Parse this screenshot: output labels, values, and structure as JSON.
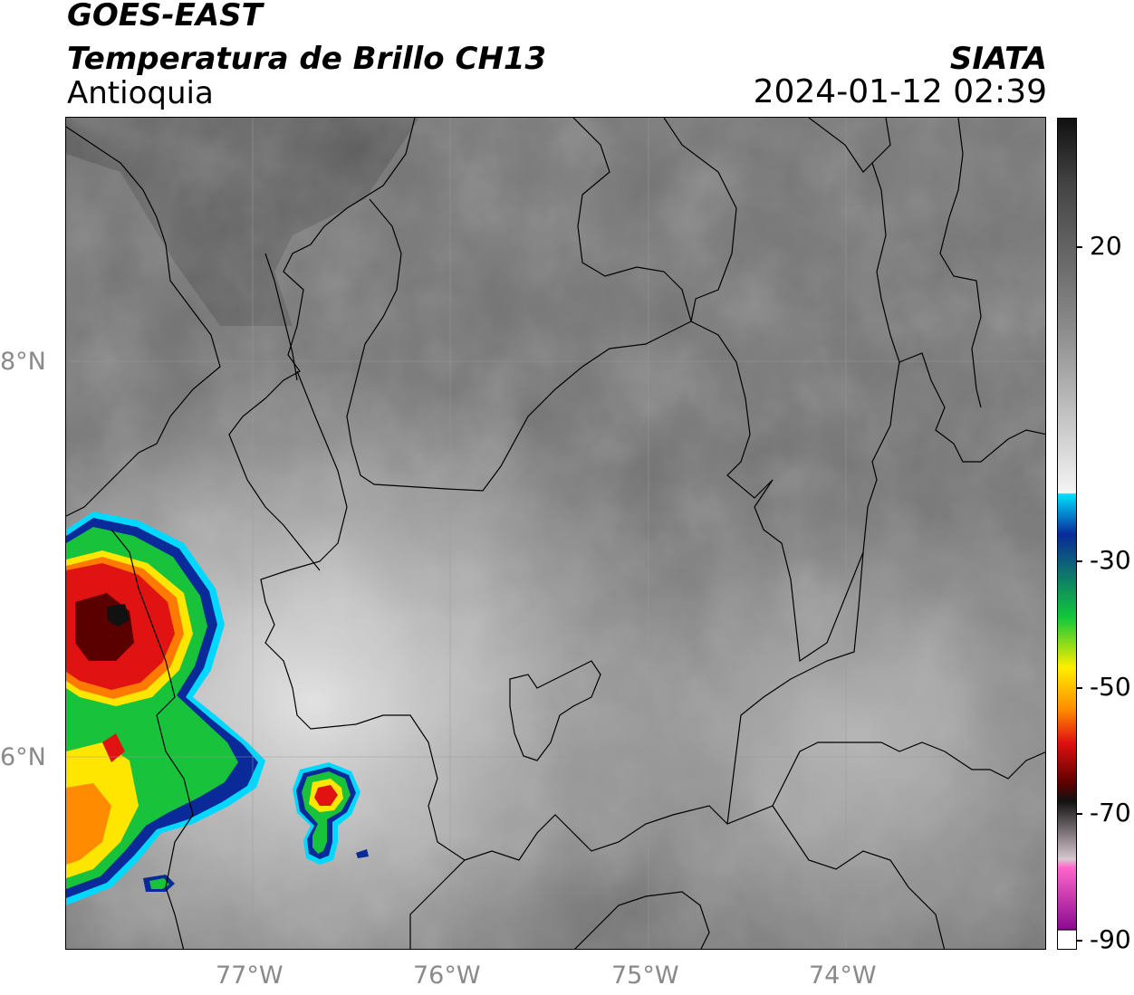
{
  "header": {
    "satellite": "GOES-EAST",
    "product": "Temperatura de Brillo CH13",
    "region": "Antioquia",
    "agency": "SIATA",
    "timestamp": "2024-01-12 02:39"
  },
  "map": {
    "lat_labels": [
      "8°N",
      "6°N"
    ],
    "lon_labels": [
      "77°W",
      "76°W",
      "75°W",
      "74°W"
    ],
    "extent": {
      "lon": [
        -77.95,
        -73.0
      ],
      "lat": [
        5.05,
        9.25
      ]
    }
  },
  "colorbar": {
    "ticks": [
      "20",
      "-30",
      "-50",
      "-70",
      "-90"
    ],
    "range": [
      -90,
      35
    ],
    "colors": {
      "warm_gray": "#6e6e6e",
      "light_gray": "#f2f2f2",
      "cyan": "#00e0ff",
      "blue": "#0a2a9a",
      "green": "#12c83a",
      "yellow": "#ffee00",
      "orange": "#ff8c00",
      "red": "#e01010",
      "dark_red": "#5a0000",
      "black": "#111111",
      "pink": "#ff66cc",
      "purple": "#8a0a90"
    }
  }
}
